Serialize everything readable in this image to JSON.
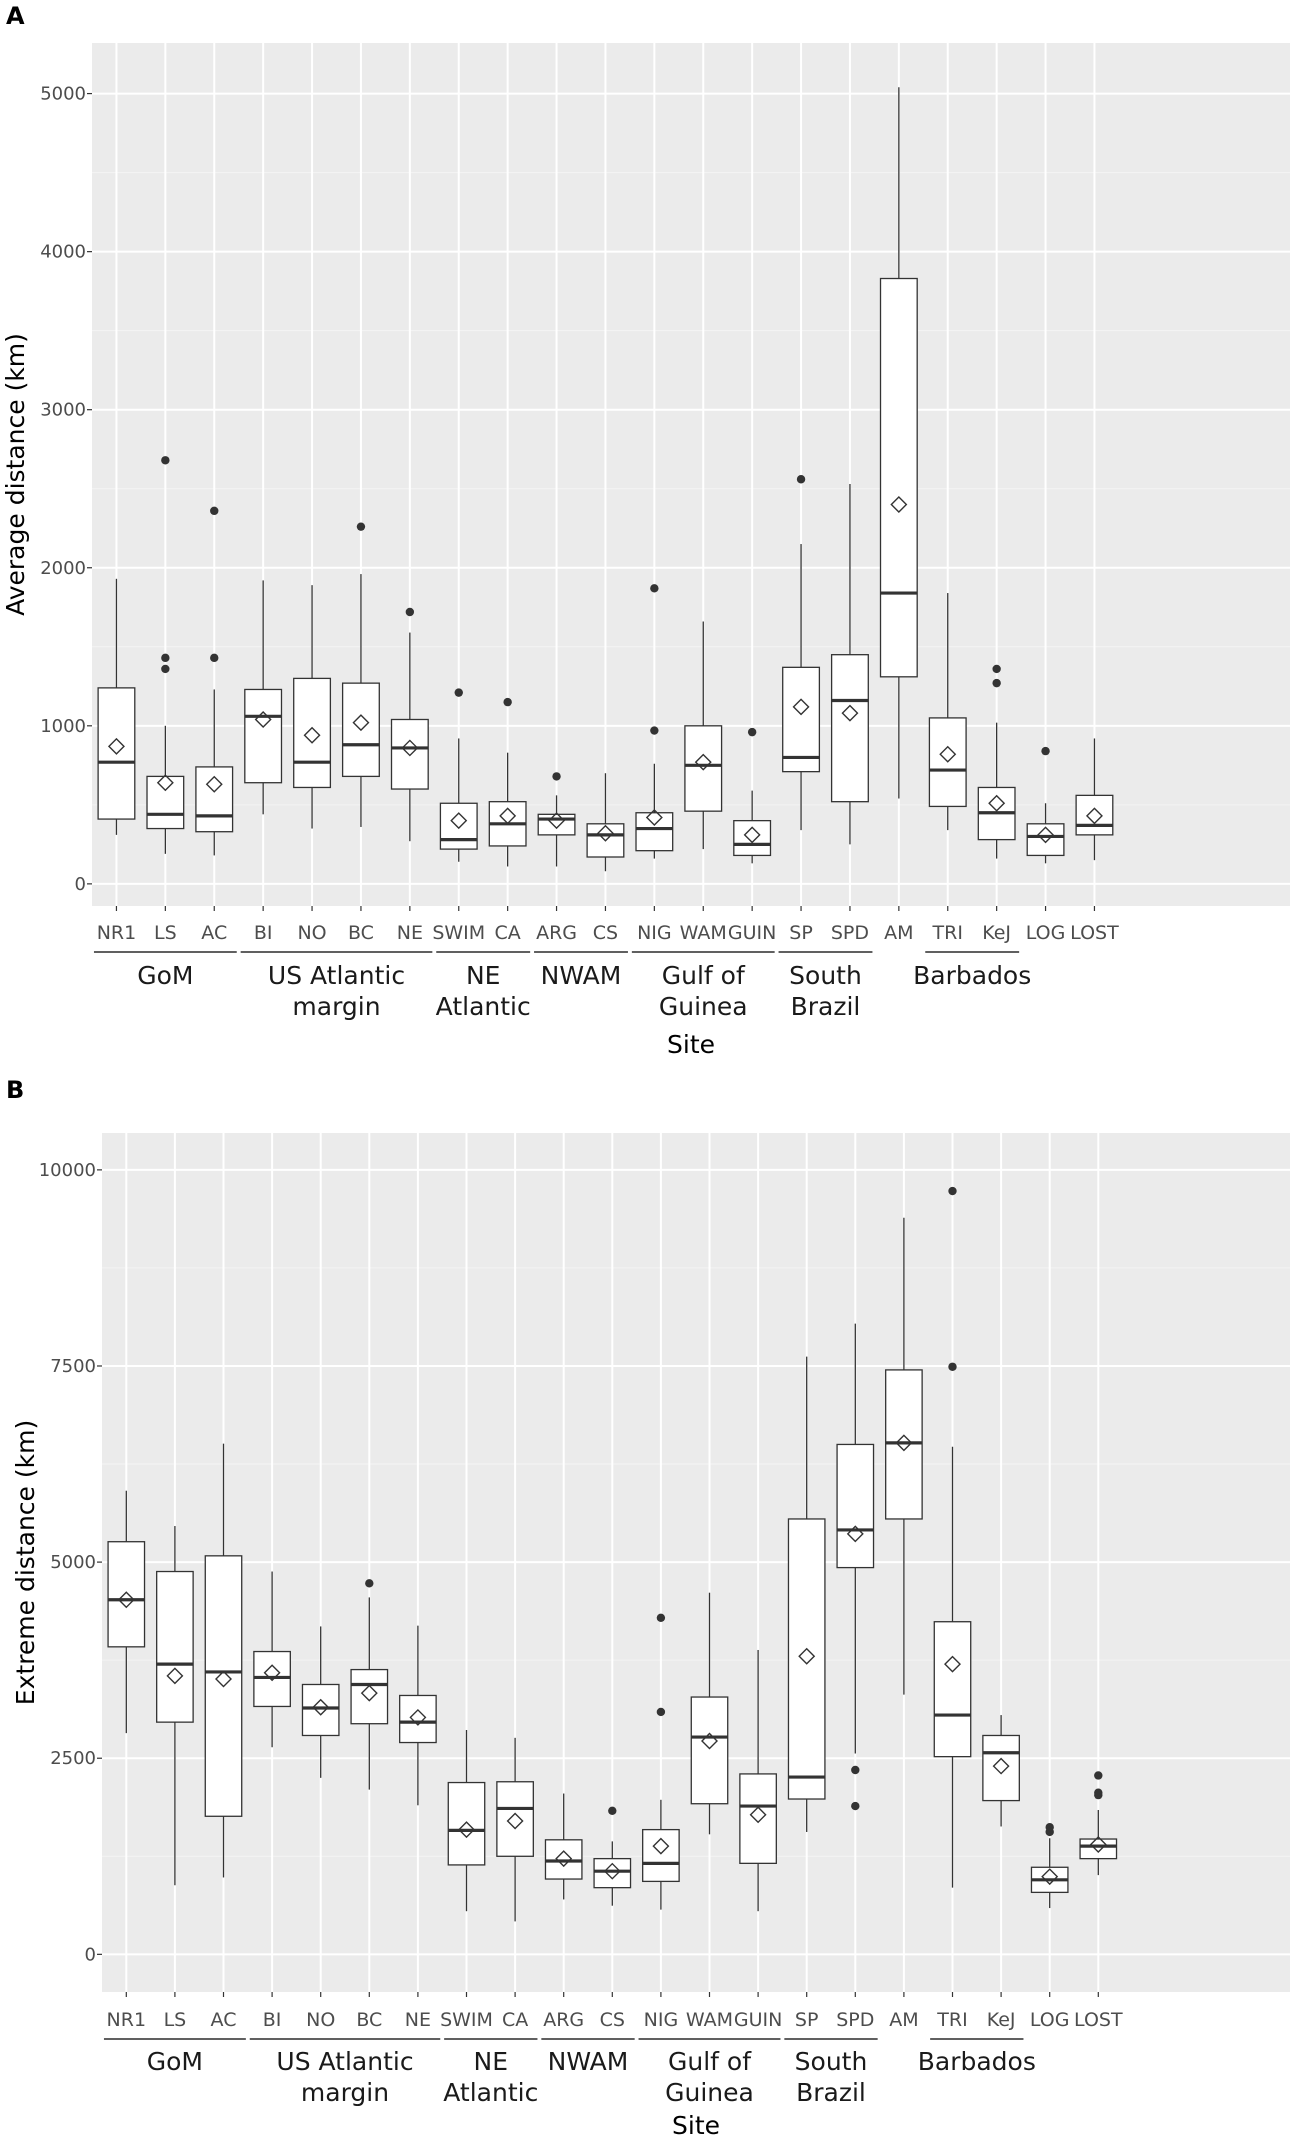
{
  "chart_data": [
    {
      "panel_label": "A",
      "type": "box",
      "ylabel": "Average distance (km)",
      "xlabel": "Site",
      "ylim": [
        -140,
        5320
      ],
      "yticks": [
        0,
        1000,
        2000,
        3000,
        4000,
        5000
      ],
      "ytick_labels": [
        "0",
        "1000",
        "2000",
        "3000",
        "4000",
        "5000"
      ],
      "sites": [
        {
          "label": "NR1",
          "whisker_low": 310,
          "q1": 410,
          "median": 770,
          "q3": 1240,
          "whisker_high": 1930,
          "mean": 870,
          "outliers": []
        },
        {
          "label": "LS",
          "whisker_low": 190,
          "q1": 350,
          "median": 440,
          "q3": 680,
          "whisker_high": 1000,
          "mean": 640,
          "outliers": [
            1360,
            1430,
            2680
          ]
        },
        {
          "label": "AC",
          "whisker_low": 180,
          "q1": 330,
          "median": 430,
          "q3": 740,
          "whisker_high": 1230,
          "mean": 630,
          "outliers": [
            1430,
            2360
          ]
        },
        {
          "label": "BI",
          "whisker_low": 440,
          "q1": 640,
          "median": 1060,
          "q3": 1230,
          "whisker_high": 1920,
          "mean": 1040,
          "outliers": []
        },
        {
          "label": "NO",
          "whisker_low": 350,
          "q1": 610,
          "median": 770,
          "q3": 1300,
          "whisker_high": 1890,
          "mean": 940,
          "outliers": []
        },
        {
          "label": "BC",
          "whisker_low": 360,
          "q1": 680,
          "median": 880,
          "q3": 1270,
          "whisker_high": 1960,
          "mean": 1020,
          "outliers": [
            2260
          ]
        },
        {
          "label": "NE",
          "whisker_low": 270,
          "q1": 600,
          "median": 860,
          "q3": 1040,
          "whisker_high": 1590,
          "mean": 860,
          "outliers": [
            1720
          ]
        },
        {
          "label": "SWIM",
          "whisker_low": 140,
          "q1": 220,
          "median": 280,
          "q3": 510,
          "whisker_high": 920,
          "mean": 400,
          "outliers": [
            1210
          ]
        },
        {
          "label": "CA",
          "whisker_low": 110,
          "q1": 240,
          "median": 380,
          "q3": 520,
          "whisker_high": 830,
          "mean": 430,
          "outliers": [
            1150
          ]
        },
        {
          "label": "ARG",
          "whisker_low": 110,
          "q1": 310,
          "median": 410,
          "q3": 440,
          "whisker_high": 560,
          "mean": 400,
          "outliers": [
            680
          ]
        },
        {
          "label": "CS",
          "whisker_low": 80,
          "q1": 170,
          "median": 310,
          "q3": 380,
          "whisker_high": 700,
          "mean": 320,
          "outliers": []
        },
        {
          "label": "NIG",
          "whisker_low": 160,
          "q1": 210,
          "median": 350,
          "q3": 450,
          "whisker_high": 760,
          "mean": 420,
          "outliers": [
            970,
            1870
          ]
        },
        {
          "label": "WAM",
          "whisker_low": 220,
          "q1": 460,
          "median": 750,
          "q3": 1000,
          "whisker_high": 1660,
          "mean": 770,
          "outliers": []
        },
        {
          "label": "GUIN",
          "whisker_low": 130,
          "q1": 180,
          "median": 250,
          "q3": 400,
          "whisker_high": 590,
          "mean": 310,
          "outliers": [
            960
          ]
        },
        {
          "label": "SP",
          "whisker_low": 340,
          "q1": 710,
          "median": 800,
          "q3": 1370,
          "whisker_high": 2150,
          "mean": 1120,
          "outliers": [
            2560
          ]
        },
        {
          "label": "SPD",
          "whisker_low": 250,
          "q1": 520,
          "median": 1160,
          "q3": 1450,
          "whisker_high": 2530,
          "mean": 1080,
          "outliers": []
        },
        {
          "label": "AM",
          "whisker_low": 540,
          "q1": 1310,
          "median": 1840,
          "q3": 3830,
          "whisker_high": 5040,
          "mean": 2400,
          "outliers": []
        },
        {
          "label": "TRI",
          "whisker_low": 340,
          "q1": 490,
          "median": 720,
          "q3": 1050,
          "whisker_high": 1840,
          "mean": 820,
          "outliers": []
        },
        {
          "label": "KeJ",
          "whisker_low": 160,
          "q1": 280,
          "median": 450,
          "q3": 610,
          "whisker_high": 1020,
          "mean": 510,
          "outliers": [
            1270,
            1360
          ]
        },
        {
          "label": "LOG",
          "whisker_low": 130,
          "q1": 180,
          "median": 300,
          "q3": 380,
          "whisker_high": 510,
          "mean": 310,
          "outliers": [
            840
          ]
        },
        {
          "label": "LOST",
          "whisker_low": 150,
          "q1": 310,
          "median": 370,
          "q3": 560,
          "whisker_high": 920,
          "mean": 430,
          "outliers": []
        }
      ],
      "groups": [
        {
          "lines": [
            "GoM"
          ],
          "sites": [
            "NR1",
            "LS",
            "AC"
          ]
        },
        {
          "lines": [
            "US Atlantic",
            "margin"
          ],
          "sites": [
            "BI",
            "NO",
            "BC",
            "NE"
          ]
        },
        {
          "lines": [
            "NE",
            "Atlantic"
          ],
          "sites": [
            "SWIM",
            "CA"
          ]
        },
        {
          "lines": [
            "NWAM"
          ],
          "sites": [
            "ARG",
            "CS"
          ]
        },
        {
          "lines": [
            "Gulf of",
            "Guinea"
          ],
          "sites": [
            "NIG",
            "WAM",
            "GUIN"
          ]
        },
        {
          "lines": [
            "South",
            "Brazil"
          ],
          "sites": [
            "SP",
            "SPD"
          ]
        },
        {
          "lines": [
            "Barbados"
          ],
          "sites": [
            "TRI",
            "KeJ"
          ]
        }
      ]
    },
    {
      "panel_label": "B",
      "type": "box",
      "ylabel": "Extreme distance (km)",
      "xlabel": "Site",
      "ylim": [
        -480,
        10470
      ],
      "yticks": [
        0,
        2500,
        5000,
        7500,
        10000
      ],
      "ytick_labels": [
        "0",
        "2500",
        "5000",
        "7500",
        "10000"
      ],
      "sites": [
        {
          "label": "NR1",
          "whisker_low": 2820,
          "q1": 3920,
          "median": 4520,
          "q3": 5260,
          "whisker_high": 5910,
          "mean": 4520,
          "outliers": []
        },
        {
          "label": "LS",
          "whisker_low": 880,
          "q1": 2960,
          "median": 3700,
          "q3": 4880,
          "whisker_high": 5460,
          "mean": 3550,
          "outliers": []
        },
        {
          "label": "AC",
          "whisker_low": 980,
          "q1": 1760,
          "median": 3600,
          "q3": 5080,
          "whisker_high": 6510,
          "mean": 3510,
          "outliers": []
        },
        {
          "label": "BI",
          "whisker_low": 2640,
          "q1": 3160,
          "median": 3530,
          "q3": 3860,
          "whisker_high": 4880,
          "mean": 3590,
          "outliers": []
        },
        {
          "label": "NO",
          "whisker_low": 2250,
          "q1": 2790,
          "median": 3140,
          "q3": 3440,
          "whisker_high": 4180,
          "mean": 3150,
          "outliers": []
        },
        {
          "label": "BC",
          "whisker_low": 2100,
          "q1": 2940,
          "median": 3440,
          "q3": 3630,
          "whisker_high": 4550,
          "mean": 3330,
          "outliers": [
            4730
          ]
        },
        {
          "label": "NE",
          "whisker_low": 1900,
          "q1": 2700,
          "median": 2960,
          "q3": 3300,
          "whisker_high": 4190,
          "mean": 3020,
          "outliers": []
        },
        {
          "label": "SWIM",
          "whisker_low": 550,
          "q1": 1140,
          "median": 1580,
          "q3": 2190,
          "whisker_high": 2860,
          "mean": 1590,
          "outliers": []
        },
        {
          "label": "CA",
          "whisker_low": 420,
          "q1": 1250,
          "median": 1860,
          "q3": 2200,
          "whisker_high": 2760,
          "mean": 1700,
          "outliers": []
        },
        {
          "label": "ARG",
          "whisker_low": 700,
          "q1": 960,
          "median": 1190,
          "q3": 1460,
          "whisker_high": 2050,
          "mean": 1220,
          "outliers": []
        },
        {
          "label": "CS",
          "whisker_low": 620,
          "q1": 850,
          "median": 1060,
          "q3": 1220,
          "whisker_high": 1440,
          "mean": 1060,
          "outliers": [
            1830
          ]
        },
        {
          "label": "NIG",
          "whisker_low": 570,
          "q1": 930,
          "median": 1160,
          "q3": 1590,
          "whisker_high": 1970,
          "mean": 1380,
          "outliers": [
            3090,
            4290
          ]
        },
        {
          "label": "WAM",
          "whisker_low": 1530,
          "q1": 1920,
          "median": 2770,
          "q3": 3280,
          "whisker_high": 4610,
          "mean": 2720,
          "outliers": []
        },
        {
          "label": "GUIN",
          "whisker_low": 550,
          "q1": 1160,
          "median": 1890,
          "q3": 2300,
          "whisker_high": 3880,
          "mean": 1780,
          "outliers": []
        },
        {
          "label": "SP",
          "whisker_low": 1560,
          "q1": 1980,
          "median": 2260,
          "q3": 5550,
          "whisker_high": 7620,
          "mean": 3800,
          "outliers": []
        },
        {
          "label": "SPD",
          "whisker_low": 2560,
          "q1": 4930,
          "median": 5410,
          "q3": 6500,
          "whisker_high": 8040,
          "mean": 5360,
          "outliers": [
            1890,
            2350
          ]
        },
        {
          "label": "AM",
          "whisker_low": 3310,
          "q1": 5550,
          "median": 6520,
          "q3": 7450,
          "whisker_high": 9390,
          "mean": 6520,
          "outliers": []
        },
        {
          "label": "TRI",
          "whisker_low": 850,
          "q1": 2520,
          "median": 3050,
          "q3": 4240,
          "whisker_high": 6470,
          "mean": 3700,
          "outliers": [
            7490,
            9730
          ]
        },
        {
          "label": "KeJ",
          "whisker_low": 1630,
          "q1": 1960,
          "median": 2570,
          "q3": 2790,
          "whisker_high": 3050,
          "mean": 2400,
          "outliers": []
        },
        {
          "label": "LOG",
          "whisker_low": 590,
          "q1": 790,
          "median": 950,
          "q3": 1110,
          "whisker_high": 1480,
          "mean": 990,
          "outliers": [
            1560,
            1620
          ]
        },
        {
          "label": "LOST",
          "whisker_low": 1010,
          "q1": 1220,
          "median": 1380,
          "q3": 1470,
          "whisker_high": 1840,
          "mean": 1400,
          "outliers": [
            2030,
            2060,
            2280
          ]
        }
      ],
      "groups": [
        {
          "lines": [
            "GoM"
          ],
          "sites": [
            "NR1",
            "LS",
            "AC"
          ]
        },
        {
          "lines": [
            "US Atlantic",
            "margin"
          ],
          "sites": [
            "BI",
            "NO",
            "BC",
            "NE"
          ]
        },
        {
          "lines": [
            "NE",
            "Atlantic"
          ],
          "sites": [
            "SWIM",
            "CA"
          ]
        },
        {
          "lines": [
            "NWAM"
          ],
          "sites": [
            "ARG",
            "CS"
          ]
        },
        {
          "lines": [
            "Gulf of",
            "Guinea"
          ],
          "sites": [
            "NIG",
            "WAM",
            "GUIN"
          ]
        },
        {
          "lines": [
            "South",
            "Brazil"
          ],
          "sites": [
            "SP",
            "SPD"
          ]
        },
        {
          "lines": [
            "Barbados"
          ],
          "sites": [
            "TRI",
            "KeJ"
          ]
        }
      ]
    }
  ],
  "colors": {
    "panel_background": "#ebebeb",
    "grid_major": "#ffffff",
    "grid_minor": "#f4f4f4",
    "box_fill": "#ffffff",
    "box_line": "#333333",
    "tick_text": "#4d4d4d"
  }
}
